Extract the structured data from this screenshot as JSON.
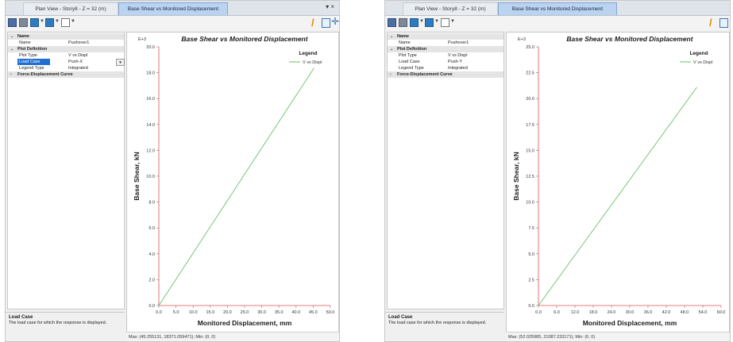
{
  "panels": [
    {
      "tabs": [
        {
          "label": "Plan View - Story8 - Z = 32 (m)",
          "active": false
        },
        {
          "label": "Base Shear vs Monitored Displacement",
          "active": true
        }
      ],
      "window_controls": "▾ ×",
      "properties": {
        "name_category": "Name",
        "name_key": "Name",
        "name_value": "Pushover1",
        "plotdef_category": "Plot Definition",
        "plot_type_key": "Plot Type",
        "plot_type_value": "V vs Displ",
        "load_case_key": "Load Case",
        "load_case_value": "Push-X",
        "legend_type_key": "Legend Type",
        "legend_type_value": "Integrated",
        "force_disp_category": "Force-Displacement Curve"
      },
      "description": {
        "title": "Load Case",
        "text": "The load case for which the response is displayed."
      },
      "status": "Max: (45.255131, 18371.059471);  Min: (0, 0)",
      "chart_data": {
        "type": "line",
        "title": "Base Shear vs Monitored Displacement",
        "xlabel": "Monitored Displacement, mm",
        "ylabel": "Base Shear, kN",
        "yexp": "E+3",
        "xlim": [
          0,
          50
        ],
        "ylim": [
          0,
          20
        ],
        "xticks": [
          "0.0",
          "5.0",
          "10.0",
          "15.0",
          "20.0",
          "25.0",
          "30.0",
          "35.0",
          "40.0",
          "45.0",
          "50.0"
        ],
        "yticks": [
          "0.0",
          "2.0",
          "4.0",
          "6.0",
          "8.0",
          "10.0",
          "12.0",
          "14.0",
          "16.0",
          "18.0",
          "20.0"
        ],
        "legend_title": "Legend",
        "series": [
          {
            "name": "V vs Displ",
            "color": "#6bbf6b",
            "x": [
              0,
              45.255131
            ],
            "y": [
              0,
              18.371059471
            ]
          }
        ]
      }
    },
    {
      "tabs": [
        {
          "label": "Plan View - Story8 - Z = 32 (m)",
          "active": false
        },
        {
          "label": "Base Shear vs Monitored Displacement",
          "active": true
        }
      ],
      "window_controls": "",
      "properties": {
        "name_category": "Name",
        "name_key": "Name",
        "name_value": "Pushover1",
        "plotdef_category": "Plot Definition",
        "plot_type_key": "Plot Type",
        "plot_type_value": "V vs Displ",
        "load_case_key": "Load Case",
        "load_case_value": "Push-Y",
        "legend_type_key": "Legend Type",
        "legend_type_value": "Integrated",
        "force_disp_category": "Force-Displacement Curve"
      },
      "description": {
        "title": "Load Case",
        "text": "The load case for which the response is displayed."
      },
      "status": "Max: (52.025985, 21087.233171);  Min: (0, 0)",
      "chart_data": {
        "type": "line",
        "title": "Base Shear vs Monitored Displacement",
        "xlabel": "Monitored Displacement, mm",
        "ylabel": "Base Shear, kN",
        "yexp": "E+3",
        "xlim": [
          0,
          60
        ],
        "ylim": [
          0,
          25
        ],
        "xticks": [
          "0.0",
          "6.0",
          "12.0",
          "18.0",
          "24.0",
          "30.0",
          "36.0",
          "42.0",
          "48.0",
          "54.0",
          "60.0"
        ],
        "yticks": [
          "0.0",
          "2.5",
          "5.0",
          "7.5",
          "10.0",
          "12.5",
          "15.0",
          "17.5",
          "20.0",
          "22.5",
          "25.0"
        ],
        "legend_title": "Legend",
        "series": [
          {
            "name": "V vs Displ",
            "color": "#6bbf6b",
            "x": [
              0,
              52.025985
            ],
            "y": [
              0,
              21.087233171
            ]
          }
        ]
      }
    }
  ]
}
